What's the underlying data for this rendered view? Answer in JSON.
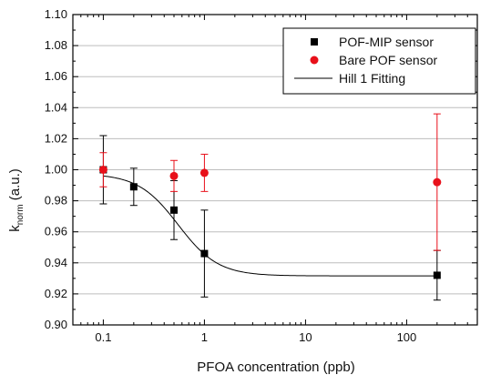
{
  "chart_data": {
    "type": "scatter",
    "xscale": "log",
    "xlim": [
      0.05,
      500
    ],
    "ylim": [
      0.9,
      1.1
    ],
    "xlabel": "PFOA concentration (ppb)",
    "ylabel": {
      "main": "k",
      "sub": "norm",
      "unit": " (a.u.)"
    },
    "x_ticks": [
      {
        "value": 0.1,
        "label": "0.1"
      },
      {
        "value": 1,
        "label": "1"
      },
      {
        "value": 10,
        "label": "10"
      },
      {
        "value": 100,
        "label": "100"
      }
    ],
    "y_ticks": [
      {
        "value": 0.9,
        "label": "0.90"
      },
      {
        "value": 0.92,
        "label": "0.92"
      },
      {
        "value": 0.94,
        "label": "0.94"
      },
      {
        "value": 0.96,
        "label": "0.96"
      },
      {
        "value": 0.98,
        "label": "0.98"
      },
      {
        "value": 1.0,
        "label": "1.00"
      },
      {
        "value": 1.02,
        "label": "1.02"
      },
      {
        "value": 1.04,
        "label": "1.04"
      },
      {
        "value": 1.06,
        "label": "1.06"
      },
      {
        "value": 1.08,
        "label": "1.08"
      },
      {
        "value": 1.1,
        "label": "1.10"
      }
    ],
    "grid": "horizontal",
    "legend_position": "top-right",
    "series": [
      {
        "name": "POF-MIP sensor",
        "marker": "square",
        "color": "#000000",
        "points": [
          {
            "x": 0.1,
            "y": 1.0,
            "err": 0.022
          },
          {
            "x": 0.2,
            "y": 0.989,
            "err": 0.012
          },
          {
            "x": 0.5,
            "y": 0.974,
            "err": 0.019
          },
          {
            "x": 1,
            "y": 0.946,
            "err": 0.028
          },
          {
            "x": 200,
            "y": 0.932,
            "err": 0.016
          }
        ]
      },
      {
        "name": "Bare POF sensor",
        "marker": "circle",
        "color": "#e8101a",
        "points": [
          {
            "x": 0.1,
            "y": 1.0,
            "err": 0.011
          },
          {
            "x": 0.5,
            "y": 0.996,
            "err": 0.01
          },
          {
            "x": 1,
            "y": 0.998,
            "err": 0.012
          },
          {
            "x": 200,
            "y": 0.992,
            "err": 0.044
          }
        ]
      }
    ],
    "fit": {
      "name": "Hill 1 Fitting",
      "color": "#000000",
      "model": "hill",
      "start": 0.9975,
      "end": 0.9316,
      "k": 0.55,
      "n": 2.2,
      "x_range": [
        0.1,
        200
      ]
    }
  }
}
